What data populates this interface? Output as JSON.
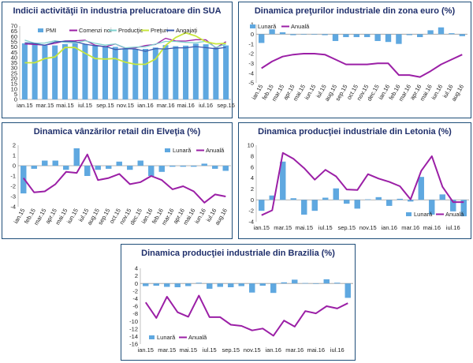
{
  "colors": {
    "bar": "#5fa8e0",
    "anual": "#9b1fa6",
    "pmi": "#5fa8e0",
    "comenzi": "#9b1fa6",
    "productie": "#7fd1cf",
    "preturi": "#c8e63c",
    "angajati": "#3a5bb0",
    "title": "#1f2f6b",
    "border": "#1f4e79"
  },
  "chart_data": [
    {
      "id": "sua",
      "type": "line",
      "title": "Indicii activităţii în industria prelucratoare din SUA",
      "ylim": [
        0,
        70
      ],
      "yticks": [
        0,
        5,
        10,
        15,
        20,
        25,
        30,
        35,
        40,
        45,
        50,
        55,
        60,
        65,
        70
      ],
      "x_count": 21,
      "xtick_labels": [
        "ian.15",
        "mar.15",
        "mai.15",
        "iul.15",
        "sep.15",
        "nov.15",
        "ian.16",
        "mar.16",
        "mai.16",
        "iul.16",
        "sep.16"
      ],
      "xtick_step": 2,
      "legend": [
        "PMI",
        "Comenzi noi",
        "Producţie",
        "Preţuri",
        "Angajaţi"
      ],
      "series": [
        {
          "name": "PMI",
          "kind": "bar",
          "values": [
            53.5,
            52.9,
            51.5,
            51.5,
            52.8,
            53.5,
            52.7,
            51.1,
            50.2,
            50.1,
            48.6,
            48.2,
            48.2,
            49.5,
            51.8,
            50.8,
            51.3,
            53.2,
            52.6,
            49.4,
            51.5
          ]
        },
        {
          "name": "Comenzi noi",
          "kind": "line",
          "values": [
            52.9,
            52.5,
            51.8,
            53.5,
            55.8,
            56.0,
            56.5,
            51.7,
            50.1,
            52.9,
            48.9,
            49.2,
            51.5,
            52.5,
            58.3,
            55.8,
            55.7,
            57.0,
            56.9,
            49.1,
            55.1
          ]
        },
        {
          "name": "Producţie",
          "kind": "line",
          "values": [
            56.5,
            53.7,
            53.8,
            56.0,
            54.5,
            54.0,
            56.0,
            53.5,
            51.8,
            52.9,
            49.2,
            49.9,
            50.2,
            52.8,
            55.3,
            55.3,
            54.4,
            54.1,
            55.4,
            49.6,
            52.8
          ]
        },
        {
          "name": "Preţuri",
          "kind": "line",
          "values": [
            35.0,
            35.0,
            39.0,
            40.5,
            49.5,
            49.5,
            44.0,
            39.0,
            38.5,
            39.0,
            35.5,
            33.5,
            33.5,
            38.5,
            51.5,
            59.0,
            63.5,
            60.5,
            55.0,
            53.0,
            53.5
          ]
        },
        {
          "name": "Angajaţi",
          "kind": "line",
          "values": [
            54.1,
            53.4,
            51.6,
            54.8,
            55.5,
            55.1,
            52.7,
            51.2,
            50.5,
            47.6,
            48.4,
            48.1,
            45.9,
            48.5,
            48.1,
            49.2,
            49.2,
            50.4,
            49.4,
            48.3,
            49.7
          ]
        }
      ]
    },
    {
      "id": "euro",
      "type": "bar+line",
      "title": "Dinamica preţurilor industriale din zona euro (%)",
      "ylim": [
        -5,
        1
      ],
      "yticks": [
        -5,
        -4,
        -3,
        -2,
        -1,
        0,
        1
      ],
      "x_count": 20,
      "xtick_labels": [
        "ian.15",
        "feb.15",
        "mar.15",
        "apr.15",
        "mai.15",
        "iun.15",
        "iul.15",
        "aug.15",
        "sep.15",
        "oct.15",
        "nov.15",
        "dec.15",
        "ian.16",
        "feb.16",
        "mar.16",
        "apr.16",
        "mai.16",
        "iun.16",
        "iul.16",
        "aug.16"
      ],
      "xtick_step": 1,
      "legend": [
        "Lunară",
        "Anuală"
      ],
      "series": [
        {
          "name": "Lunară",
          "kind": "bar",
          "values": [
            -0.9,
            0.5,
            0.2,
            -0.1,
            0.0,
            0.0,
            -0.1,
            -0.7,
            -0.3,
            -0.3,
            -0.3,
            -0.7,
            -0.8,
            -1.0,
            -0.1,
            -0.3,
            0.4,
            0.7,
            0.1,
            -0.2
          ]
        },
        {
          "name": "Anuală",
          "kind": "line",
          "values": [
            -3.5,
            -2.8,
            -2.3,
            -2.1,
            -2.0,
            -2.0,
            -2.1,
            -2.6,
            -3.1,
            -3.1,
            -3.1,
            -3.0,
            -3.0,
            -4.2,
            -4.2,
            -4.4,
            -3.8,
            -3.1,
            -2.6,
            -2.1
          ]
        }
      ]
    },
    {
      "id": "elvetia",
      "type": "bar+line",
      "title": "Dinamica vânzărilor retail din Elveţia (%)",
      "ylim": [
        -4,
        2
      ],
      "yticks": [
        -4,
        -3,
        -2,
        -1,
        0,
        1,
        2
      ],
      "x_count": 20,
      "xtick_labels": [
        "ian.15",
        "feb.15",
        "mar.15",
        "apr.15",
        "mai.15",
        "iun.15",
        "iul.15",
        "aug.15",
        "sep.15",
        "oct.15",
        "nov.15",
        "dec.15",
        "ian.16",
        "feb.16",
        "mar.16",
        "apr.16",
        "mai.16",
        "iun.16",
        "iul.16",
        "aug.16"
      ],
      "xtick_step": 1,
      "legend": [
        "Lunară",
        "Anuală"
      ],
      "series": [
        {
          "name": "Lunară",
          "kind": "bar",
          "values": [
            -2.7,
            -0.3,
            0.5,
            0.5,
            -0.4,
            1.7,
            -1.0,
            -0.4,
            -0.3,
            0.4,
            -0.4,
            0.5,
            -1.0,
            -0.6,
            -0.1,
            -0.1,
            -0.1,
            0.2,
            -0.3,
            -0.5
          ]
        },
        {
          "name": "Anuală",
          "kind": "line",
          "values": [
            -1.2,
            -2.6,
            -2.5,
            -1.8,
            -0.6,
            -0.7,
            1.1,
            -1.4,
            -1.2,
            -0.8,
            -1.8,
            -1.6,
            -1.0,
            -1.4,
            -2.3,
            -2.0,
            -2.5,
            -3.6,
            -2.8,
            -3.0
          ]
        }
      ]
    },
    {
      "id": "letonia",
      "type": "bar+line",
      "title": "Dinamica producţiei industriale din Letonia (%)",
      "ylim": [
        -4,
        10
      ],
      "yticks": [
        -4,
        -2,
        0,
        2,
        4,
        6,
        8,
        10
      ],
      "x_count": 20,
      "xtick_labels": [
        "ian.15",
        "mar.15",
        "mai.15",
        "iul.15",
        "sep.15",
        "nov.15",
        "ian.16",
        "mar.16",
        "mai.16",
        "iul.16"
      ],
      "xtick_step": 2,
      "legend": [
        "Lunară",
        "Anuală"
      ],
      "series": [
        {
          "name": "Lunară",
          "kind": "bar",
          "values": [
            -2.0,
            0.8,
            7.0,
            0.3,
            -2.7,
            -2.0,
            0.4,
            2.1,
            -0.7,
            -1.6,
            0.1,
            0.5,
            -1.1,
            0.2,
            -0.3,
            4.2,
            -2.7,
            1.0,
            -2.1,
            -3.0
          ]
        },
        {
          "name": "Anuală",
          "kind": "line",
          "values": [
            -2.8,
            -1.9,
            8.6,
            7.5,
            5.8,
            3.7,
            5.5,
            4.3,
            1.9,
            1.8,
            4.7,
            3.9,
            3.3,
            2.5,
            0.1,
            5.3,
            8.0,
            2.4,
            -0.4,
            -0.4
          ]
        }
      ]
    },
    {
      "id": "brazilia",
      "type": "bar+line",
      "title": "Dinamica producţiei industriale din Brazilia (%)",
      "ylim": [
        -16,
        4
      ],
      "yticks": [
        -16,
        -14,
        -12,
        -10,
        -8,
        -6,
        -4,
        -2,
        0,
        2,
        4
      ],
      "x_count": 20,
      "xtick_labels": [
        "ian.15",
        "mar.15",
        "mai.15",
        "iul.15",
        "sep.15",
        "nov.15",
        "ian.16",
        "mar.16",
        "mai.16",
        "iul.16"
      ],
      "xtick_step": 2,
      "legend": [
        "Lunară",
        "Anuală"
      ],
      "series": [
        {
          "name": "Lunară",
          "kind": "bar",
          "values": [
            -0.7,
            -0.6,
            -0.9,
            -1.0,
            -0.7,
            0.2,
            -1.4,
            -0.9,
            -1.0,
            -0.7,
            -2.4,
            -0.6,
            -2.5,
            0.3,
            1.0,
            0.1,
            -0.1,
            1.1,
            0.2,
            -3.8
          ]
        },
        {
          "name": "Anuală",
          "kind": "line",
          "values": [
            -5.0,
            -9.1,
            -3.5,
            -7.6,
            -8.8,
            -3.2,
            -8.9,
            -8.9,
            -10.9,
            -11.2,
            -12.4,
            -11.9,
            -13.8,
            -9.8,
            -11.4,
            -7.3,
            -7.9,
            -6.0,
            -6.6,
            -5.2
          ]
        }
      ]
    }
  ]
}
